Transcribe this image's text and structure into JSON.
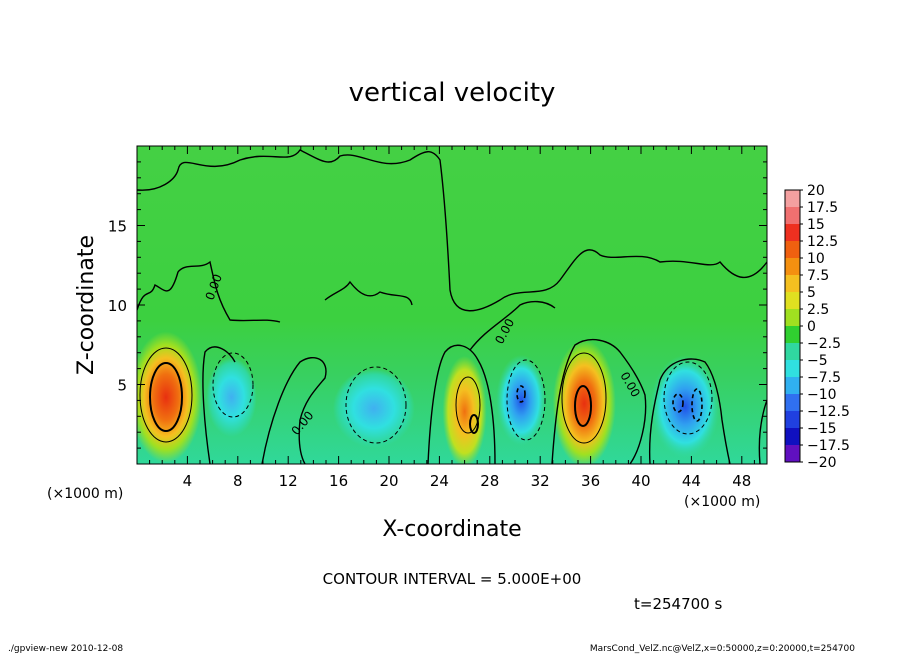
{
  "chart_data": {
    "type": "heatmap",
    "title": "vertical velocity",
    "xlabel": "X-coordinate",
    "ylabel": "Z-coordinate",
    "x_unit_left": "(×1000 m)",
    "x_unit_right": "(×1000 m)",
    "xlim": [
      0,
      50
    ],
    "ylim": [
      0,
      20
    ],
    "x_ticks": [
      4,
      8,
      12,
      16,
      20,
      24,
      28,
      32,
      36,
      40,
      44,
      48
    ],
    "x_tick_labels": [
      "4",
      "8",
      "12",
      "16",
      "20",
      "24",
      "28",
      "32",
      "36",
      "40",
      "44",
      "48"
    ],
    "y_ticks": [
      5,
      10,
      15
    ],
    "y_tick_labels": [
      "5",
      "10",
      "15"
    ],
    "contour_interval_text": "CONTOUR INTERVAL = 5.000E+00",
    "contour_labels": [
      "0.00",
      "0.00",
      "0.00",
      "0.00"
    ],
    "time_text": "t=254700 s",
    "colorbar": {
      "levels": [
        "20",
        "17.5",
        "15",
        "12.5",
        "10",
        "7.5",
        "5",
        "2.5",
        "0",
        "−2.5",
        "−5",
        "−7.5",
        "−10",
        "−12.5",
        "−15",
        "−17.5",
        "−20"
      ],
      "colors": [
        "#f4a0a0",
        "#f07070",
        "#ee3020",
        "#f06010",
        "#f49010",
        "#f4c020",
        "#e0e020",
        "#a0e020",
        "#30d030",
        "#30d8a0",
        "#30e0e0",
        "#30b0f0",
        "#3070f0",
        "#2040e0",
        "#1010c0",
        "#6010c0"
      ]
    },
    "features": [
      {
        "x": 2.3,
        "z": 4.2,
        "rx": 2.3,
        "rz": 3.3,
        "value": 15
      },
      {
        "x": 7.5,
        "z": 4.2,
        "rx": 1.6,
        "rz": 2.0,
        "value": -6
      },
      {
        "x": 18.8,
        "z": 3.5,
        "rx": 2.6,
        "rz": 2.0,
        "value": -5
      },
      {
        "x": 26.0,
        "z": 3.3,
        "rx": 1.4,
        "rz": 2.8,
        "value": 8
      },
      {
        "x": 30.5,
        "z": 4.0,
        "rx": 1.6,
        "rz": 2.3,
        "value": -9
      },
      {
        "x": 35.5,
        "z": 3.8,
        "rx": 2.0,
        "rz": 3.2,
        "value": 11
      },
      {
        "x": 43.5,
        "z": 3.6,
        "rx": 2.2,
        "rz": 2.6,
        "value": -10
      }
    ]
  },
  "footer": {
    "left": "./gpview-new  2010-12-08",
    "right": "MarsCond_VelZ.nc@VelZ,x=0:50000,z=0:20000,t=254700"
  }
}
